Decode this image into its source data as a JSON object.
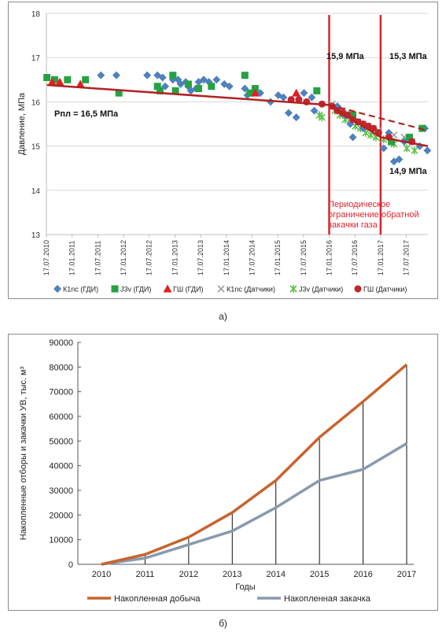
{
  "chart_data": [
    {
      "type": "scatter",
      "caption": "а)",
      "ylabel": "Давление, МПа",
      "ylim": [
        13,
        18
      ],
      "yticks": [
        13,
        14,
        15,
        16,
        17,
        18
      ],
      "x_tick_labels": [
        "17.07.2010",
        "17.01.2011",
        "17.07.2011",
        "17.01.2012",
        "17.07.2012",
        "17.01.2013",
        "17.07.2013",
        "17.01.2014",
        "17.07.2014",
        "17.01.2015",
        "17.07.2015",
        "17.01.2016",
        "17.07.2016",
        "17.01.2017",
        "17.07.2017"
      ],
      "x_range_years": [
        2010.54,
        2017.96
      ],
      "annotations": {
        "initial_pressure": "Рпл = 16,5 МПа",
        "p_2016": "15,9 МПа",
        "p_2017_trend": "15,3 МПа",
        "p_2017_actual": "14,9 МПа",
        "limitation_note": [
          "Периодическое",
          "ограничение обратной",
          "закачки газа"
        ]
      },
      "vertical_lines": [
        2016.04,
        2017.04
      ],
      "legend": [
        "К1nc (ГДИ)",
        "J3v (ГДИ)",
        "ГШ (ГДИ)",
        "К1nc (Датчики)",
        "J3v (Датчики)",
        "ГШ (Датчики)"
      ],
      "colors": {
        "k1nc": "#4f81bd",
        "j3v": "#25a244",
        "gsh": "#e02020",
        "k1nc_sensor": "#9aa0a8",
        "j3v_sensor": "#5cbf4a",
        "gsh_sensor": "#c0272d",
        "trend": "#b22222",
        "vline": "#d9262c"
      },
      "series": [
        {
          "name": "К1nc (ГДИ)",
          "marker": "diamond",
          "points": [
            [
              2011.6,
              16.6
            ],
            [
              2011.9,
              16.6
            ],
            [
              2012.5,
              16.6
            ],
            [
              2012.7,
              16.6
            ],
            [
              2012.8,
              16.55
            ],
            [
              2012.85,
              16.35
            ],
            [
              2013.0,
              16.5
            ],
            [
              2013.1,
              16.5
            ],
            [
              2013.15,
              16.4
            ],
            [
              2013.25,
              16.45
            ],
            [
              2013.3,
              16.35
            ],
            [
              2013.35,
              16.25
            ],
            [
              2013.45,
              16.3
            ],
            [
              2013.5,
              16.45
            ],
            [
              2013.6,
              16.5
            ],
            [
              2013.7,
              16.45
            ],
            [
              2013.85,
              16.5
            ],
            [
              2014.0,
              16.4
            ],
            [
              2014.1,
              16.35
            ],
            [
              2014.4,
              16.3
            ],
            [
              2014.45,
              16.15
            ],
            [
              2014.7,
              16.2
            ],
            [
              2014.9,
              16.0
            ],
            [
              2015.05,
              16.15
            ],
            [
              2015.15,
              16.1
            ],
            [
              2015.25,
              15.75
            ],
            [
              2015.4,
              15.65
            ],
            [
              2015.55,
              16.2
            ],
            [
              2015.7,
              16.1
            ],
            [
              2015.75,
              15.8
            ],
            [
              2016.2,
              15.9
            ],
            [
              2016.35,
              15.7
            ],
            [
              2016.45,
              15.5
            ],
            [
              2016.5,
              15.2
            ],
            [
              2016.7,
              15.4
            ],
            [
              2017.0,
              15.3
            ],
            [
              2017.1,
              14.95
            ],
            [
              2017.2,
              15.3
            ],
            [
              2017.3,
              14.65
            ],
            [
              2017.4,
              14.7
            ],
            [
              2017.5,
              15.1
            ],
            [
              2017.6,
              15.15
            ],
            [
              2017.8,
              15.0
            ],
            [
              2017.9,
              15.4
            ],
            [
              2017.95,
              14.9
            ]
          ]
        },
        {
          "name": "J3v (ГДИ)",
          "marker": "square",
          "points": [
            [
              2010.55,
              16.55
            ],
            [
              2010.7,
              16.5
            ],
            [
              2010.95,
              16.5
            ],
            [
              2011.3,
              16.5
            ],
            [
              2011.95,
              16.2
            ],
            [
              2012.7,
              16.35
            ],
            [
              2012.75,
              16.25
            ],
            [
              2013.0,
              16.6
            ],
            [
              2013.05,
              16.25
            ],
            [
              2013.3,
              16.4
            ],
            [
              2013.5,
              16.3
            ],
            [
              2013.75,
              16.35
            ],
            [
              2014.4,
              16.6
            ],
            [
              2014.5,
              16.2
            ],
            [
              2014.6,
              16.3
            ],
            [
              2015.8,
              16.25
            ],
            [
              2016.5,
              15.7
            ],
            [
              2017.25,
              15.1
            ],
            [
              2017.6,
              15.2
            ],
            [
              2017.85,
              15.4
            ]
          ]
        },
        {
          "name": "ГШ (ГДИ)",
          "marker": "triangle",
          "points": [
            [
              2010.65,
              16.45
            ],
            [
              2010.8,
              16.45
            ],
            [
              2011.2,
              16.4
            ],
            [
              2014.6,
              16.2
            ],
            [
              2015.4,
              16.2
            ]
          ]
        },
        {
          "name": "К1nc (Датчики)",
          "marker": "x",
          "points": [
            [
              2016.1,
              15.95
            ],
            [
              2016.2,
              15.85
            ],
            [
              2016.3,
              15.8
            ],
            [
              2016.4,
              15.75
            ],
            [
              2016.5,
              15.6
            ],
            [
              2016.6,
              15.55
            ],
            [
              2016.7,
              15.5
            ],
            [
              2016.8,
              15.45
            ],
            [
              2016.9,
              15.4
            ],
            [
              2017.0,
              15.35
            ],
            [
              2017.3,
              15.25
            ],
            [
              2017.5,
              15.2
            ],
            [
              2017.65,
              15.1
            ]
          ]
        },
        {
          "name": "J3v (Датчики)",
          "marker": "star",
          "points": [
            [
              2015.85,
              15.7
            ],
            [
              2015.9,
              15.65
            ],
            [
              2016.15,
              15.8
            ],
            [
              2016.25,
              15.7
            ],
            [
              2016.35,
              15.6
            ],
            [
              2016.45,
              15.55
            ],
            [
              2016.55,
              15.45
            ],
            [
              2016.65,
              15.4
            ],
            [
              2016.75,
              15.3
            ],
            [
              2016.85,
              15.25
            ],
            [
              2016.95,
              15.2
            ],
            [
              2017.1,
              15.15
            ],
            [
              2017.3,
              15.05
            ],
            [
              2017.55,
              14.95
            ],
            [
              2017.7,
              14.9
            ]
          ]
        },
        {
          "name": "ГШ (Датчики)",
          "marker": "circle",
          "points": [
            [
              2015.3,
              16.05
            ],
            [
              2015.45,
              16.05
            ],
            [
              2015.6,
              16.0
            ],
            [
              2015.9,
              15.95
            ],
            [
              2016.1,
              15.9
            ],
            [
              2016.2,
              15.8
            ],
            [
              2016.3,
              15.75
            ],
            [
              2016.4,
              15.7
            ],
            [
              2016.5,
              15.6
            ],
            [
              2016.6,
              15.55
            ],
            [
              2016.7,
              15.5
            ],
            [
              2016.8,
              15.45
            ],
            [
              2016.9,
              15.4
            ],
            [
              2017.0,
              15.3
            ],
            [
              2017.2,
              15.2
            ],
            [
              2017.65,
              15.1
            ]
          ]
        }
      ],
      "trend_solid": [
        [
          2010.55,
          16.38
        ],
        [
          2016.04,
          15.93
        ],
        [
          2017.04,
          15.2
        ],
        [
          2017.96,
          15.0
        ]
      ],
      "trend_dashed": [
        [
          2016.04,
          15.93
        ],
        [
          2017.96,
          15.35
        ]
      ]
    },
    {
      "type": "line",
      "caption": "б)",
      "xlabel": "Годы",
      "ylabel": "Накопленные отборы и закачки УВ, тыс. м³",
      "ylim": [
        0,
        90000
      ],
      "yticks": [
        0,
        10000,
        20000,
        30000,
        40000,
        50000,
        60000,
        70000,
        80000,
        90000
      ],
      "categories": [
        "2010",
        "2011",
        "2012",
        "2013",
        "2014",
        "2015",
        "2016",
        "2017"
      ],
      "colors": {
        "production": "#c8642e",
        "injection": "#8a9aad"
      },
      "series": [
        {
          "name": "Накопленная добыча",
          "values": [
            0,
            4000,
            11000,
            21000,
            34000,
            51500,
            66000,
            81000
          ]
        },
        {
          "name": "Накопленная закачка",
          "values": [
            0,
            2500,
            8000,
            13500,
            23000,
            34000,
            38500,
            49000
          ]
        }
      ]
    }
  ]
}
